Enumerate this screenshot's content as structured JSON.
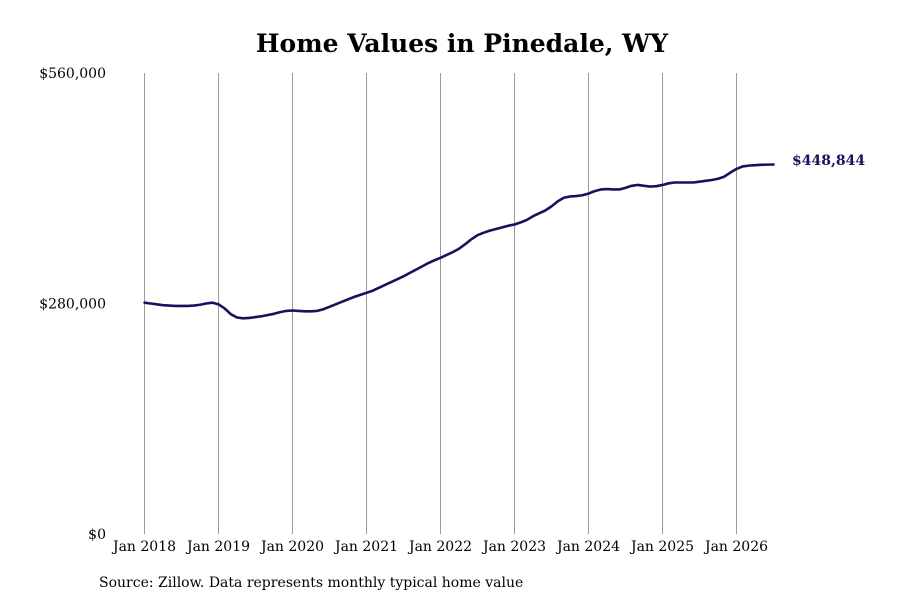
{
  "chart_data": {
    "type": "line",
    "title": "Home Values in Pinedale, WY",
    "xlabel": "",
    "ylabel": "",
    "ylim": [
      0,
      560000
    ],
    "yticks": [
      {
        "value": 0,
        "label": "$0"
      },
      {
        "value": 280000,
        "label": "$280,000"
      },
      {
        "value": 560000,
        "label": "$560,000"
      }
    ],
    "xticks": [
      {
        "value": "2018-01",
        "label": "Jan 2018"
      },
      {
        "value": "2019-01",
        "label": "Jan 2019"
      },
      {
        "value": "2020-01",
        "label": "Jan 2020"
      },
      {
        "value": "2021-01",
        "label": "Jan 2021"
      },
      {
        "value": "2022-01",
        "label": "Jan 2022"
      },
      {
        "value": "2023-01",
        "label": "Jan 2023"
      },
      {
        "value": "2024-01",
        "label": "Jan 2024"
      },
      {
        "value": "2025-01",
        "label": "Jan 2025"
      },
      {
        "value": "2026-01",
        "label": "Jan 2026"
      }
    ],
    "grid": "vertical",
    "line_color": "#14145e",
    "end_label": "$448,844",
    "series": [
      {
        "points": [
          [
            "2018-01",
            281000
          ],
          [
            "2018-02",
            280000
          ],
          [
            "2018-03",
            279000
          ],
          [
            "2018-04",
            278000
          ],
          [
            "2018-05",
            277500
          ],
          [
            "2018-06",
            277000
          ],
          [
            "2018-07",
            277000
          ],
          [
            "2018-08",
            277000
          ],
          [
            "2018-09",
            277500
          ],
          [
            "2018-10",
            278500
          ],
          [
            "2018-11",
            280000
          ],
          [
            "2018-12",
            281000
          ],
          [
            "2019-01",
            279000
          ],
          [
            "2019-02",
            274000
          ],
          [
            "2019-03",
            267000
          ],
          [
            "2019-04",
            263000
          ],
          [
            "2019-05",
            262000
          ],
          [
            "2019-06",
            262500
          ],
          [
            "2019-07",
            263500
          ],
          [
            "2019-08",
            264500
          ],
          [
            "2019-09",
            266000
          ],
          [
            "2019-10",
            267500
          ],
          [
            "2019-11",
            269500
          ],
          [
            "2019-12",
            271000
          ],
          [
            "2020-01",
            271500
          ],
          [
            "2020-02",
            271000
          ],
          [
            "2020-03",
            270500
          ],
          [
            "2020-04",
            270500
          ],
          [
            "2020-05",
            271000
          ],
          [
            "2020-06",
            273000
          ],
          [
            "2020-07",
            276000
          ],
          [
            "2020-08",
            279000
          ],
          [
            "2020-09",
            282000
          ],
          [
            "2020-10",
            285000
          ],
          [
            "2020-11",
            288000
          ],
          [
            "2020-12",
            290500
          ],
          [
            "2021-01",
            293000
          ],
          [
            "2021-02",
            295500
          ],
          [
            "2021-03",
            299000
          ],
          [
            "2021-04",
            302500
          ],
          [
            "2021-05",
            306000
          ],
          [
            "2021-06",
            309500
          ],
          [
            "2021-07",
            313000
          ],
          [
            "2021-08",
            317000
          ],
          [
            "2021-09",
            321000
          ],
          [
            "2021-10",
            325000
          ],
          [
            "2021-11",
            329000
          ],
          [
            "2021-12",
            332500
          ],
          [
            "2022-01",
            335500
          ],
          [
            "2022-02",
            339000
          ],
          [
            "2022-03",
            342500
          ],
          [
            "2022-04",
            346500
          ],
          [
            "2022-05",
            352000
          ],
          [
            "2022-06",
            358000
          ],
          [
            "2022-07",
            363000
          ],
          [
            "2022-08",
            366000
          ],
          [
            "2022-09",
            368500
          ],
          [
            "2022-10",
            370500
          ],
          [
            "2022-11",
            372500
          ],
          [
            "2022-12",
            374500
          ],
          [
            "2023-01",
            376000
          ],
          [
            "2023-02",
            378500
          ],
          [
            "2023-03",
            381500
          ],
          [
            "2023-04",
            386000
          ],
          [
            "2023-05",
            389500
          ],
          [
            "2023-06",
            393000
          ],
          [
            "2023-07",
            398000
          ],
          [
            "2023-08",
            404000
          ],
          [
            "2023-09",
            408500
          ],
          [
            "2023-10",
            410000
          ],
          [
            "2023-11",
            410500
          ],
          [
            "2023-12",
            411500
          ],
          [
            "2024-01",
            413500
          ],
          [
            "2024-02",
            416500
          ],
          [
            "2024-03",
            418500
          ],
          [
            "2024-04",
            419000
          ],
          [
            "2024-05",
            418500
          ],
          [
            "2024-06",
            418500
          ],
          [
            "2024-07",
            420500
          ],
          [
            "2024-08",
            423000
          ],
          [
            "2024-09",
            424000
          ],
          [
            "2024-10",
            423000
          ],
          [
            "2024-11",
            422000
          ],
          [
            "2024-12",
            422500
          ],
          [
            "2025-01",
            424000
          ],
          [
            "2025-02",
            426000
          ],
          [
            "2025-03",
            427000
          ],
          [
            "2025-04",
            427000
          ],
          [
            "2025-05",
            427000
          ],
          [
            "2025-06",
            427000
          ],
          [
            "2025-07",
            428000
          ],
          [
            "2025-08",
            429000
          ],
          [
            "2025-09",
            430000
          ],
          [
            "2025-10",
            431500
          ],
          [
            "2025-11",
            434000
          ],
          [
            "2025-12",
            439000
          ],
          [
            "2026-01",
            443500
          ],
          [
            "2026-02",
            446500
          ],
          [
            "2026-03",
            447500
          ],
          [
            "2026-04",
            448000
          ],
          [
            "2026-05",
            448500
          ],
          [
            "2026-06",
            448700
          ],
          [
            "2026-07",
            448844
          ]
        ]
      }
    ]
  },
  "footer": {
    "source": "Source: Zillow. Data represents monthly typical home value"
  }
}
